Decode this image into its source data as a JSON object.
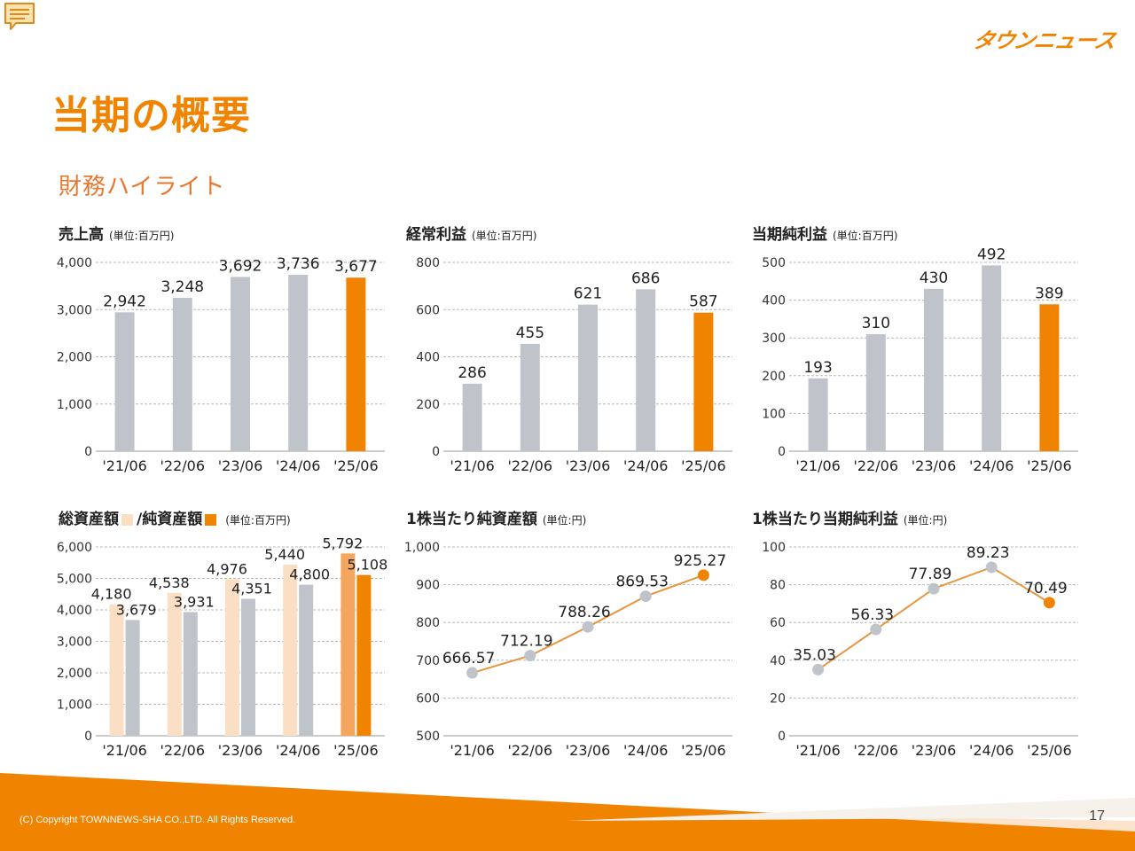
{
  "page": {
    "title": "当期の概要",
    "section": "財務ハイライト",
    "logo": "タウンニュース",
    "copyright": "(C) Copyright TOWNNEWS-SHA CO.,LTD. All Rights Reserved.",
    "page_number": "17"
  },
  "colors": {
    "accent": "#F08300",
    "bar_gray": "#BEC4CA",
    "bar_light": "#FADFC4",
    "point_gray": "#BEC4CA",
    "grid": "#B8B8B8"
  },
  "chart_data": [
    {
      "id": "sales",
      "type": "bar",
      "title": "売上高",
      "unit": "(単位:百万円)",
      "categories": [
        "'21/06",
        "'22/06",
        "'23/06",
        "'24/06",
        "'25/06"
      ],
      "values": [
        2942,
        3248,
        3692,
        3736,
        3677
      ],
      "value_labels": [
        "2,942",
        "3,248",
        "3,692",
        "3,736",
        "3,677"
      ],
      "ylim": [
        0,
        4000
      ],
      "yticks": [
        0,
        1000,
        2000,
        3000,
        4000
      ],
      "ytick_labels": [
        "0",
        "1,000",
        "2,000",
        "3,000",
        "4,000"
      ],
      "highlight_last": true,
      "grid": true
    },
    {
      "id": "ordinary_profit",
      "type": "bar",
      "title": "経常利益",
      "unit": "(単位:百万円)",
      "categories": [
        "'21/06",
        "'22/06",
        "'23/06",
        "'24/06",
        "'25/06"
      ],
      "values": [
        286,
        455,
        621,
        686,
        587
      ],
      "value_labels": [
        "286",
        "455",
        "621",
        "686",
        "587"
      ],
      "ylim": [
        0,
        800
      ],
      "yticks": [
        0,
        200,
        400,
        600,
        800
      ],
      "ytick_labels": [
        "0",
        "200",
        "400",
        "600",
        "800"
      ],
      "highlight_last": true,
      "grid": true
    },
    {
      "id": "net_income",
      "type": "bar",
      "title": "当期純利益",
      "unit": "(単位:百万円)",
      "categories": [
        "'21/06",
        "'22/06",
        "'23/06",
        "'24/06",
        "'25/06"
      ],
      "values": [
        193,
        310,
        430,
        492,
        389
      ],
      "value_labels": [
        "193",
        "310",
        "430",
        "492",
        "389"
      ],
      "ylim": [
        0,
        500
      ],
      "yticks": [
        0,
        100,
        200,
        300,
        400,
        500
      ],
      "ytick_labels": [
        "0",
        "100",
        "200",
        "300",
        "400",
        "500"
      ],
      "highlight_last": true,
      "grid": true
    },
    {
      "id": "assets",
      "type": "bar",
      "title": "総資産額",
      "title2": "/純資産額",
      "unit": "(単位:百万円)",
      "categories": [
        "'21/06",
        "'22/06",
        "'23/06",
        "'24/06",
        "'25/06"
      ],
      "series": [
        {
          "name": "総資産額",
          "values": [
            4180,
            4538,
            4976,
            5440,
            5792
          ],
          "value_labels": [
            "4,180",
            "4,538",
            "4,976",
            "5,440",
            "5,792"
          ]
        },
        {
          "name": "純資産額",
          "values": [
            3679,
            3931,
            4351,
            4800,
            5108
          ],
          "value_labels": [
            "3,679",
            "3,931",
            "4,351",
            "4,800",
            "5,108"
          ]
        }
      ],
      "ylim": [
        0,
        6000
      ],
      "yticks": [
        0,
        1000,
        2000,
        3000,
        4000,
        5000,
        6000
      ],
      "ytick_labels": [
        "0",
        "1,000",
        "2,000",
        "3,000",
        "4,000",
        "5,000",
        "6,000"
      ],
      "highlight_last": true,
      "grid": true
    },
    {
      "id": "bps",
      "type": "line",
      "title": "1株当たり純資産額",
      "unit": "(単位:円)",
      "categories": [
        "'21/06",
        "'22/06",
        "'23/06",
        "'24/06",
        "'25/06"
      ],
      "values": [
        666.57,
        712.19,
        788.26,
        869.53,
        925.27
      ],
      "value_labels": [
        "666.57",
        "712.19",
        "788.26",
        "869.53",
        "925.27"
      ],
      "ylim": [
        500,
        1000
      ],
      "yticks": [
        500,
        600,
        700,
        800,
        900,
        1000
      ],
      "ytick_labels": [
        "500",
        "600",
        "700",
        "800",
        "900",
        "1,000"
      ],
      "highlight_last": true,
      "grid": true
    },
    {
      "id": "eps",
      "type": "line",
      "title": "1株当たり当期純利益",
      "unit": "(単位:円)",
      "categories": [
        "'21/06",
        "'22/06",
        "'23/06",
        "'24/06",
        "'25/06"
      ],
      "values": [
        35.03,
        56.33,
        77.89,
        89.23,
        70.49
      ],
      "value_labels": [
        "35.03",
        "56.33",
        "77.89",
        "89.23",
        "70.49"
      ],
      "ylim": [
        0,
        100
      ],
      "yticks": [
        0,
        20,
        40,
        60,
        80,
        100
      ],
      "ytick_labels": [
        "0",
        "20",
        "40",
        "60",
        "80",
        "100"
      ],
      "highlight_last": true,
      "grid": true
    }
  ]
}
